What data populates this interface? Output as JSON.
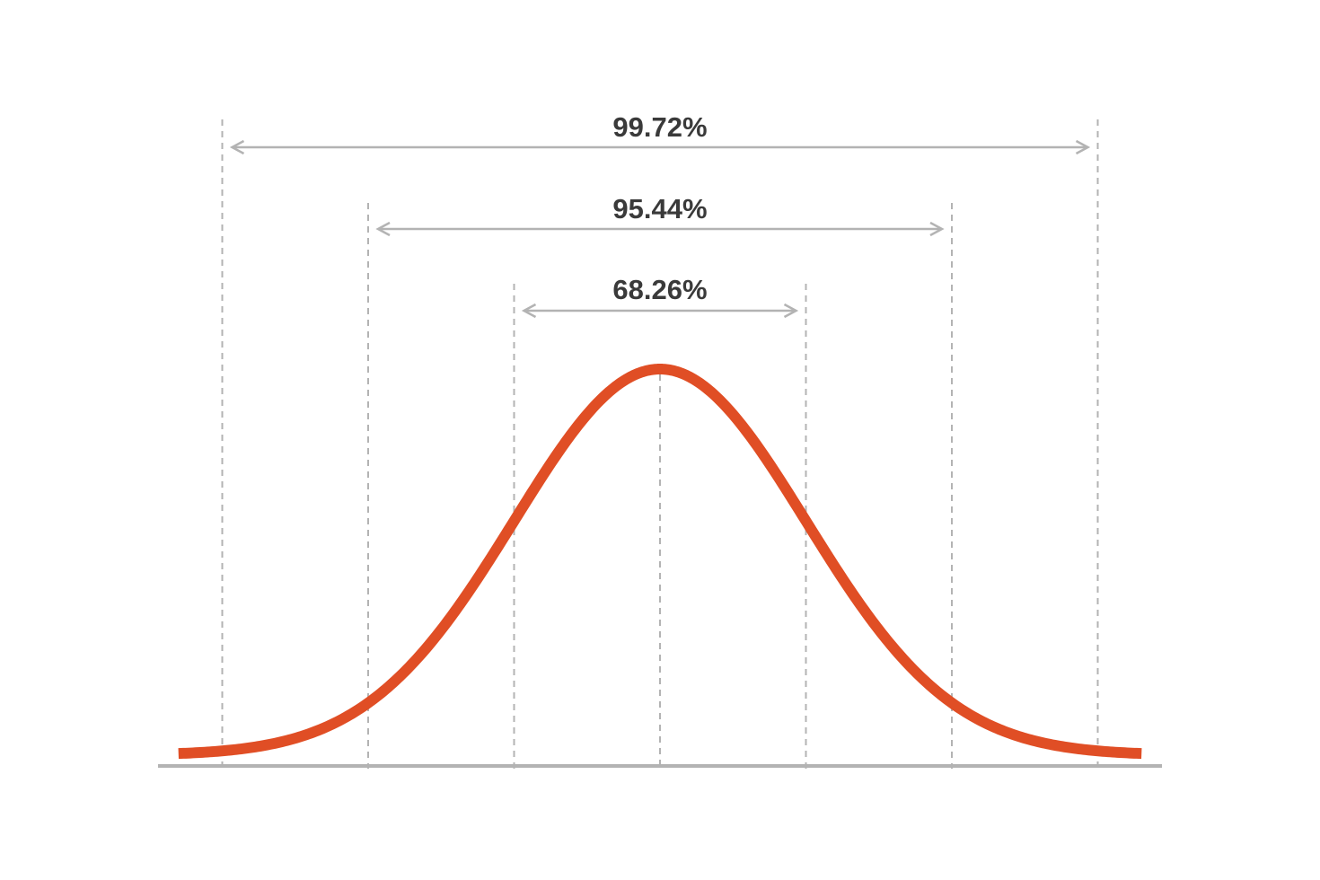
{
  "chart_data": {
    "type": "line",
    "title": "",
    "xlabel": "",
    "ylabel": "",
    "xlim": [
      -3.3,
      3.3
    ],
    "ylim": [
      0,
      0.4
    ],
    "series": [
      {
        "curve": "normal-pdf",
        "mean": 0,
        "sd": 1,
        "color": "#e04e25"
      }
    ],
    "sigma_lines": [
      -3,
      -2,
      -1,
      0,
      1,
      2,
      3
    ],
    "sigma_line_color": "#b3b3b3",
    "baseline_color": "#b3b3b3",
    "intervals": [
      {
        "from": -3,
        "to": 3,
        "label": "99.72%"
      },
      {
        "from": -2,
        "to": 2,
        "label": "95.44%"
      },
      {
        "from": -1,
        "to": 1,
        "label": "68.26%"
      }
    ],
    "arrow_color": "#b3b3b3",
    "grid": false,
    "legend": "none"
  }
}
